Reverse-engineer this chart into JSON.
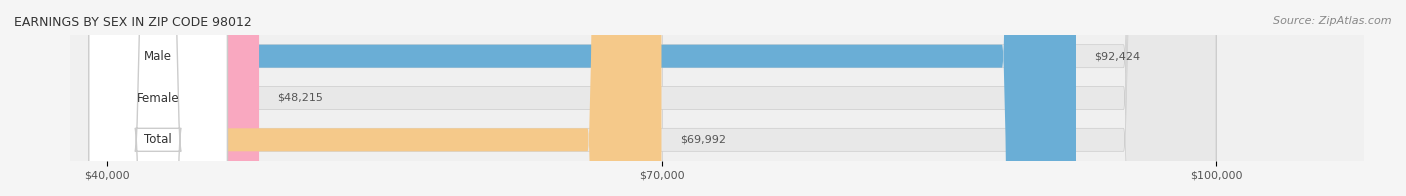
{
  "title": "EARNINGS BY SEX IN ZIP CODE 98012",
  "source": "Source: ZipAtlas.com",
  "categories": [
    "Male",
    "Female",
    "Total"
  ],
  "values": [
    92424,
    48215,
    69992
  ],
  "bar_colors": [
    "#6aaed6",
    "#f9a8c0",
    "#f5c98a"
  ],
  "bar_edge_colors": [
    "#5b9ec9",
    "#e890aa",
    "#e8b070"
  ],
  "label_colors": [
    "#4a90c4",
    "#e07090",
    "#e8a050"
  ],
  "x_min": 40000,
  "x_max": 100000,
  "x_ticks": [
    40000,
    70000,
    100000
  ],
  "x_tick_labels": [
    "$40,000",
    "$70,000",
    "$100,000"
  ],
  "value_labels": [
    "$92,424",
    "$48,215",
    "$69,992"
  ],
  "bar_height": 0.55,
  "figsize": [
    14.06,
    1.96
  ],
  "dpi": 100,
  "bg_color": "#f0f0f0",
  "bar_bg_color": "#e8e8e8",
  "title_fontsize": 9,
  "source_fontsize": 8,
  "label_fontsize": 8.5,
  "value_fontsize": 8,
  "tick_fontsize": 8
}
